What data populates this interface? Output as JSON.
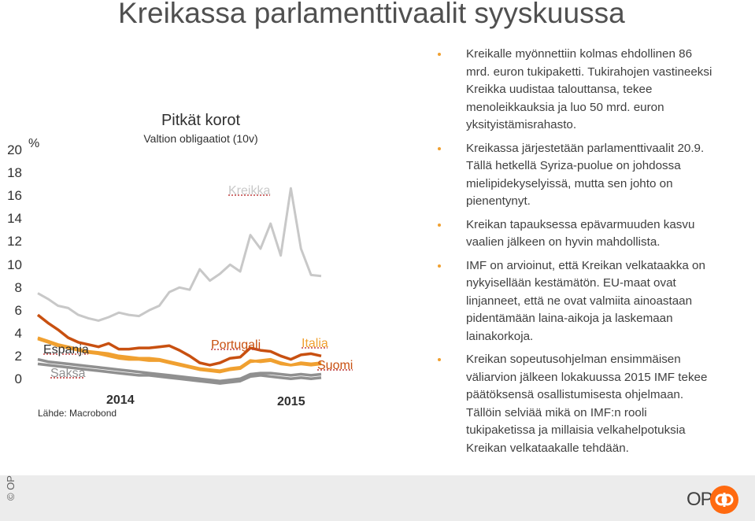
{
  "title": "Kreikassa parlamenttivaalit syyskuussa",
  "chart_data": {
    "type": "line",
    "title": "Pitkät korot",
    "subtitle": "Valtion obligaatiot (10v)",
    "ylabel": "%",
    "ylim": [
      0,
      20
    ],
    "yticks": [
      "20",
      "18",
      "16",
      "14",
      "12",
      "10",
      "8",
      "6",
      "4",
      "2",
      "0"
    ],
    "xticks": [
      "2014",
      "2015"
    ],
    "source": "Lähde: Macrobond",
    "series": [
      {
        "name": "Kreikka",
        "color": "#c8c8c8",
        "values": [
          8.1,
          7.6,
          7.0,
          6.8,
          6.2,
          5.9,
          5.7,
          6.0,
          6.4,
          6.2,
          6.1,
          6.6,
          7.0,
          8.2,
          8.6,
          8.4,
          10.2,
          9.2,
          9.8,
          10.6,
          10.0,
          13.2,
          12.0,
          14.2,
          11.4,
          17.3,
          12.0,
          9.7,
          9.6
        ]
      },
      {
        "name": "Portugali",
        "color": "#c85010",
        "values": [
          6.2,
          5.5,
          4.9,
          4.2,
          3.8,
          3.6,
          3.4,
          3.7,
          3.2,
          3.2,
          3.3,
          3.3,
          3.4,
          3.5,
          3.1,
          2.6,
          2.0,
          1.8,
          2.0,
          2.4,
          2.5,
          3.3,
          3.1,
          3.0,
          2.6,
          2.3,
          2.7,
          2.8,
          2.6
        ]
      },
      {
        "name": "Espanja",
        "color": "#f0a030",
        "values": [
          4.1,
          3.8,
          3.5,
          3.3,
          3.1,
          2.9,
          2.8,
          2.6,
          2.4,
          2.3,
          2.3,
          2.2,
          2.2,
          2.0,
          1.8,
          1.6,
          1.4,
          1.3,
          1.2,
          1.4,
          1.5,
          2.1,
          2.2,
          2.3,
          2.0,
          1.8,
          2.0,
          1.9,
          2.0
        ]
      },
      {
        "name": "Italia",
        "color": "#f0a030",
        "values": [
          4.2,
          3.9,
          3.6,
          3.4,
          3.2,
          3.0,
          2.9,
          2.8,
          2.6,
          2.5,
          2.4,
          2.4,
          2.3,
          2.1,
          1.9,
          1.7,
          1.5,
          1.4,
          1.3,
          1.5,
          1.6,
          2.2,
          2.1,
          2.2,
          1.9,
          1.8,
          1.9,
          1.8,
          1.9
        ]
      },
      {
        "name": "Saksa",
        "color": "#909090",
        "values": [
          1.9,
          1.8,
          1.7,
          1.6,
          1.5,
          1.4,
          1.3,
          1.2,
          1.1,
          1.0,
          0.9,
          0.9,
          0.8,
          0.7,
          0.6,
          0.5,
          0.4,
          0.3,
          0.2,
          0.3,
          0.4,
          0.8,
          0.9,
          0.8,
          0.7,
          0.6,
          0.7,
          0.6,
          0.7
        ]
      },
      {
        "name": "Suomi",
        "color": "#909090",
        "values": [
          2.3,
          2.1,
          2.0,
          1.9,
          1.8,
          1.7,
          1.6,
          1.5,
          1.4,
          1.3,
          1.2,
          1.1,
          1.0,
          0.9,
          0.8,
          0.7,
          0.6,
          0.5,
          0.4,
          0.5,
          0.6,
          1.0,
          1.1,
          1.1,
          1.0,
          0.9,
          1.0,
          0.9,
          1.0
        ]
      }
    ]
  },
  "bullets": [
    "Kreikalle myönnettiin kolmas ehdollinen 86 mrd. euron tukipaketti. Tukirahojen vastineeksi Kreikka uudistaa talouttansa, tekee menoleikkauksia ja luo 50 mrd. euron yksityistämisrahasto.",
    "Kreikassa järjestetään parlamenttivaalit 20.9. Tällä hetkellä Syriza-puolue on johdossa mielipidekyselyissä, mutta sen johto on pienentynyt.",
    "Kreikan tapauksessa epävarmuuden kasvu vaalien jälkeen on hyvin mahdollista.",
    "IMF on arvioinut, että Kreikan velkataakka on nykyisellään kestämätön. EU-maat ovat linjanneet, että ne ovat valmiita ainoastaan pidentämään laina-aikoja ja laskemaan lainakorkoja.",
    "Kreikan sopeutusohjelman ensimmäisen väliarvion jälkeen lokakuussa 2015 IMF tekee päätöksensä osallistumisesta ohjelmaan. Tällöin selviää mikä on IMF:n rooli tukipaketissa ja millaisia velkahelpotuksia Kreikan velkataakalle tehdään."
  ],
  "footer": {
    "copyright": "© OP",
    "logo": "OP"
  }
}
